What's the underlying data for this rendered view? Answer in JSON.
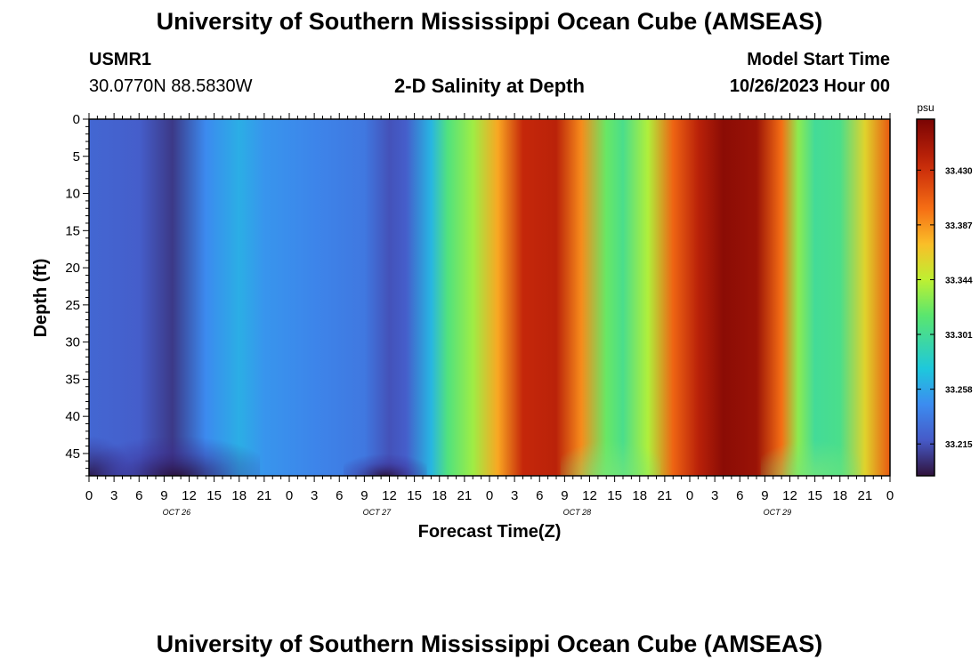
{
  "header": {
    "title": "University of Southern Mississippi Ocean Cube (AMSEAS)",
    "station": "USMR1",
    "coords": "30.0770N  88.5830W",
    "plot_title": "2-D Salinity at Depth",
    "model_start_label": "Model Start Time",
    "model_start_value": "10/26/2023 Hour 00"
  },
  "footer": {
    "title": "University of Southern Mississippi Ocean Cube (AMSEAS)"
  },
  "chart_data": {
    "type": "heatmap",
    "title": "2-D Salinity at Depth",
    "xlabel": "Forecast Time(Z)",
    "ylabel": "Depth (ft)",
    "x_hours": [
      0,
      96
    ],
    "x_tick_labels": [
      "0",
      "3",
      "6",
      "9",
      "12",
      "15",
      "18",
      "21",
      "0",
      "3",
      "6",
      "9",
      "12",
      "15",
      "18",
      "21",
      "0",
      "3",
      "6",
      "9",
      "12",
      "15",
      "18",
      "21",
      "0",
      "3",
      "6",
      "9",
      "12",
      "15",
      "18",
      "21",
      "0"
    ],
    "day_labels": [
      "OCT 26",
      "OCT 27",
      "OCT 28",
      "OCT 29"
    ],
    "ylim": [
      0,
      48
    ],
    "y_ticks": [
      0,
      5,
      10,
      15,
      20,
      25,
      30,
      35,
      40,
      45
    ],
    "colorbar": {
      "unit": "psu",
      "ticks": [
        "33.215",
        "33.258",
        "33.301",
        "33.344",
        "33.387",
        "33.430"
      ],
      "tick_values": [
        33.215,
        33.258,
        33.301,
        33.344,
        33.387,
        33.43
      ],
      "range": [
        33.19,
        33.47
      ]
    },
    "surface_salinity_by_hour": [
      [
        0,
        33.225
      ],
      [
        6,
        33.22
      ],
      [
        10,
        33.205
      ],
      [
        14,
        33.245
      ],
      [
        18,
        33.262
      ],
      [
        21,
        33.25
      ],
      [
        27,
        33.242
      ],
      [
        33,
        33.235
      ],
      [
        36,
        33.215
      ],
      [
        38,
        33.22
      ],
      [
        41,
        33.265
      ],
      [
        43,
        33.31
      ],
      [
        46,
        33.335
      ],
      [
        49,
        33.38
      ],
      [
        52,
        33.435
      ],
      [
        56,
        33.44
      ],
      [
        59,
        33.39
      ],
      [
        62,
        33.32
      ],
      [
        64,
        33.305
      ],
      [
        67,
        33.34
      ],
      [
        70,
        33.405
      ],
      [
        73,
        33.44
      ],
      [
        76,
        33.462
      ],
      [
        80,
        33.455
      ],
      [
        83,
        33.4
      ],
      [
        85,
        33.33
      ],
      [
        87,
        33.3
      ],
      [
        90,
        33.305
      ],
      [
        93,
        33.36
      ],
      [
        96,
        33.41
      ]
    ],
    "notes_bottom_layer": "Fresher water near the bottom (40-48 ft) around hours 9-12 of Oct 26 and Oct 27"
  }
}
